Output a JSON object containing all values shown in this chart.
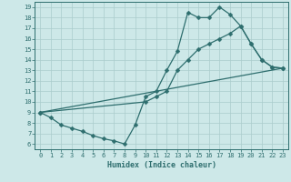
{
  "bg_color": "#cde8e8",
  "line_color": "#2e6e6e",
  "grid_color": "#aacccc",
  "xlabel": "Humidex (Indice chaleur)",
  "ylim": [
    5.5,
    19.5
  ],
  "xlim": [
    -0.5,
    23.5
  ],
  "yticks": [
    6,
    7,
    8,
    9,
    10,
    11,
    12,
    13,
    14,
    15,
    16,
    17,
    18,
    19
  ],
  "xticks": [
    0,
    1,
    2,
    3,
    4,
    5,
    6,
    7,
    8,
    9,
    10,
    11,
    12,
    13,
    14,
    15,
    16,
    17,
    18,
    19,
    20,
    21,
    22,
    23
  ],
  "line1_x": [
    0,
    1,
    2,
    3,
    4,
    5,
    6,
    7,
    8,
    9,
    10,
    11,
    12,
    13,
    14,
    15,
    16,
    17,
    18,
    19,
    20,
    21,
    22,
    23
  ],
  "line1_y": [
    9.0,
    8.5,
    7.8,
    7.5,
    7.2,
    6.8,
    6.5,
    6.3,
    6.0,
    7.8,
    10.5,
    11.0,
    13.0,
    14.8,
    18.5,
    18.0,
    18.0,
    19.0,
    18.3,
    17.2,
    15.5,
    14.0,
    13.3,
    13.2
  ],
  "line2_x": [
    0,
    23
  ],
  "line2_y": [
    9.0,
    13.2
  ],
  "line3_x": [
    0,
    10,
    11,
    12,
    13,
    14,
    15,
    16,
    17,
    18,
    19,
    20,
    21,
    22,
    23
  ],
  "line3_y": [
    9.0,
    10.0,
    10.5,
    11.0,
    13.0,
    14.0,
    15.0,
    15.5,
    16.0,
    16.5,
    17.2,
    15.5,
    14.0,
    13.3,
    13.2
  ],
  "markersize": 2.5,
  "linewidth": 0.9,
  "tick_fontsize": 5.0,
  "xlabel_fontsize": 6.0
}
